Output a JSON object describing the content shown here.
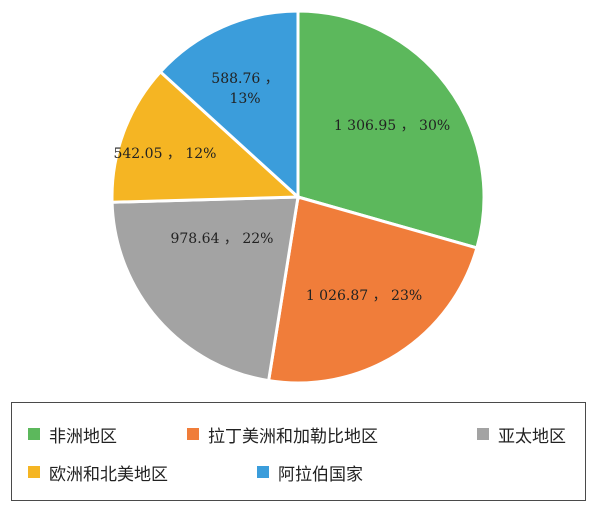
{
  "chart_data": {
    "type": "pie",
    "categories": [
      "非洲地区",
      "拉丁美洲和加勒比地区",
      "亚太地区",
      "欧洲和北美地区",
      "阿拉伯国家"
    ],
    "values": [
      1306.95,
      1026.87,
      978.64,
      542.05,
      588.76
    ],
    "labels": [
      "1 306.95 ， 30%",
      "1 026.87 ， 23%",
      "978.64 ， 22%",
      "542.05 ， 12%",
      "588.76 ，\n13%"
    ],
    "colors": [
      "#5cb85c",
      "#f07d3a",
      "#a3a3a3",
      "#f5b523",
      "#3b9ddb"
    ],
    "start_angle_deg": 0,
    "direction": "clockwise",
    "legend_position": "bottom"
  }
}
